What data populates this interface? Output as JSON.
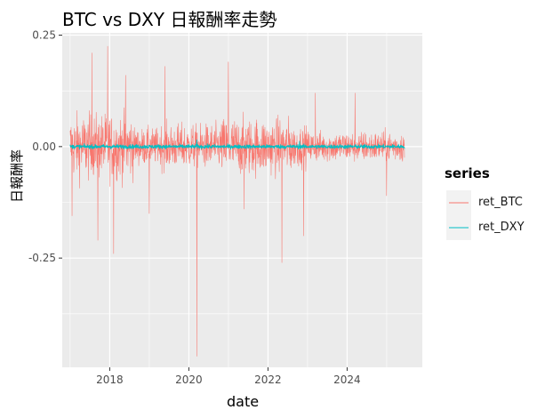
{
  "chart_data": {
    "type": "line",
    "title": "BTC vs DXY 日報酬率走勢",
    "xlabel": "date",
    "ylabel": "日報酬率",
    "xlim": [
      2016.8,
      2025.9
    ],
    "ylim": [
      -0.495,
      0.255
    ],
    "x_ticks": [
      2018,
      2020,
      2022,
      2024
    ],
    "x_tick_labels": [
      "2018",
      "2020",
      "2022",
      "2024"
    ],
    "y_ticks": [
      0.25,
      0.0,
      -0.25
    ],
    "y_tick_labels": [
      "0.25",
      "0.00",
      "-0.25"
    ],
    "grid": true,
    "legend": {
      "title": "series",
      "position": "right"
    },
    "x_range": [
      2017.0,
      2025.45
    ],
    "series": [
      {
        "name": "ret_BTC",
        "color": "#F8766D",
        "typical_amplitude": 0.04,
        "extremes": [
          {
            "x": 2017.05,
            "y": -0.155
          },
          {
            "x": 2017.55,
            "y": 0.21
          },
          {
            "x": 2017.7,
            "y": -0.21
          },
          {
            "x": 2017.95,
            "y": 0.225
          },
          {
            "x": 2018.1,
            "y": -0.24
          },
          {
            "x": 2018.4,
            "y": 0.16
          },
          {
            "x": 2019.0,
            "y": -0.15
          },
          {
            "x": 2019.4,
            "y": 0.18
          },
          {
            "x": 2020.2,
            "y": -0.47
          },
          {
            "x": 2021.0,
            "y": 0.19
          },
          {
            "x": 2021.4,
            "y": -0.14
          },
          {
            "x": 2022.35,
            "y": -0.26
          },
          {
            "x": 2022.9,
            "y": -0.2
          },
          {
            "x": 2023.2,
            "y": 0.12
          },
          {
            "x": 2024.2,
            "y": 0.12
          },
          {
            "x": 2025.0,
            "y": -0.11
          }
        ]
      },
      {
        "name": "ret_DXY",
        "color": "#00BFC4",
        "typical_amplitude": 0.004,
        "extremes": [
          {
            "x": 2020.2,
            "y": 0.015
          },
          {
            "x": 2022.8,
            "y": 0.012
          }
        ]
      }
    ]
  }
}
